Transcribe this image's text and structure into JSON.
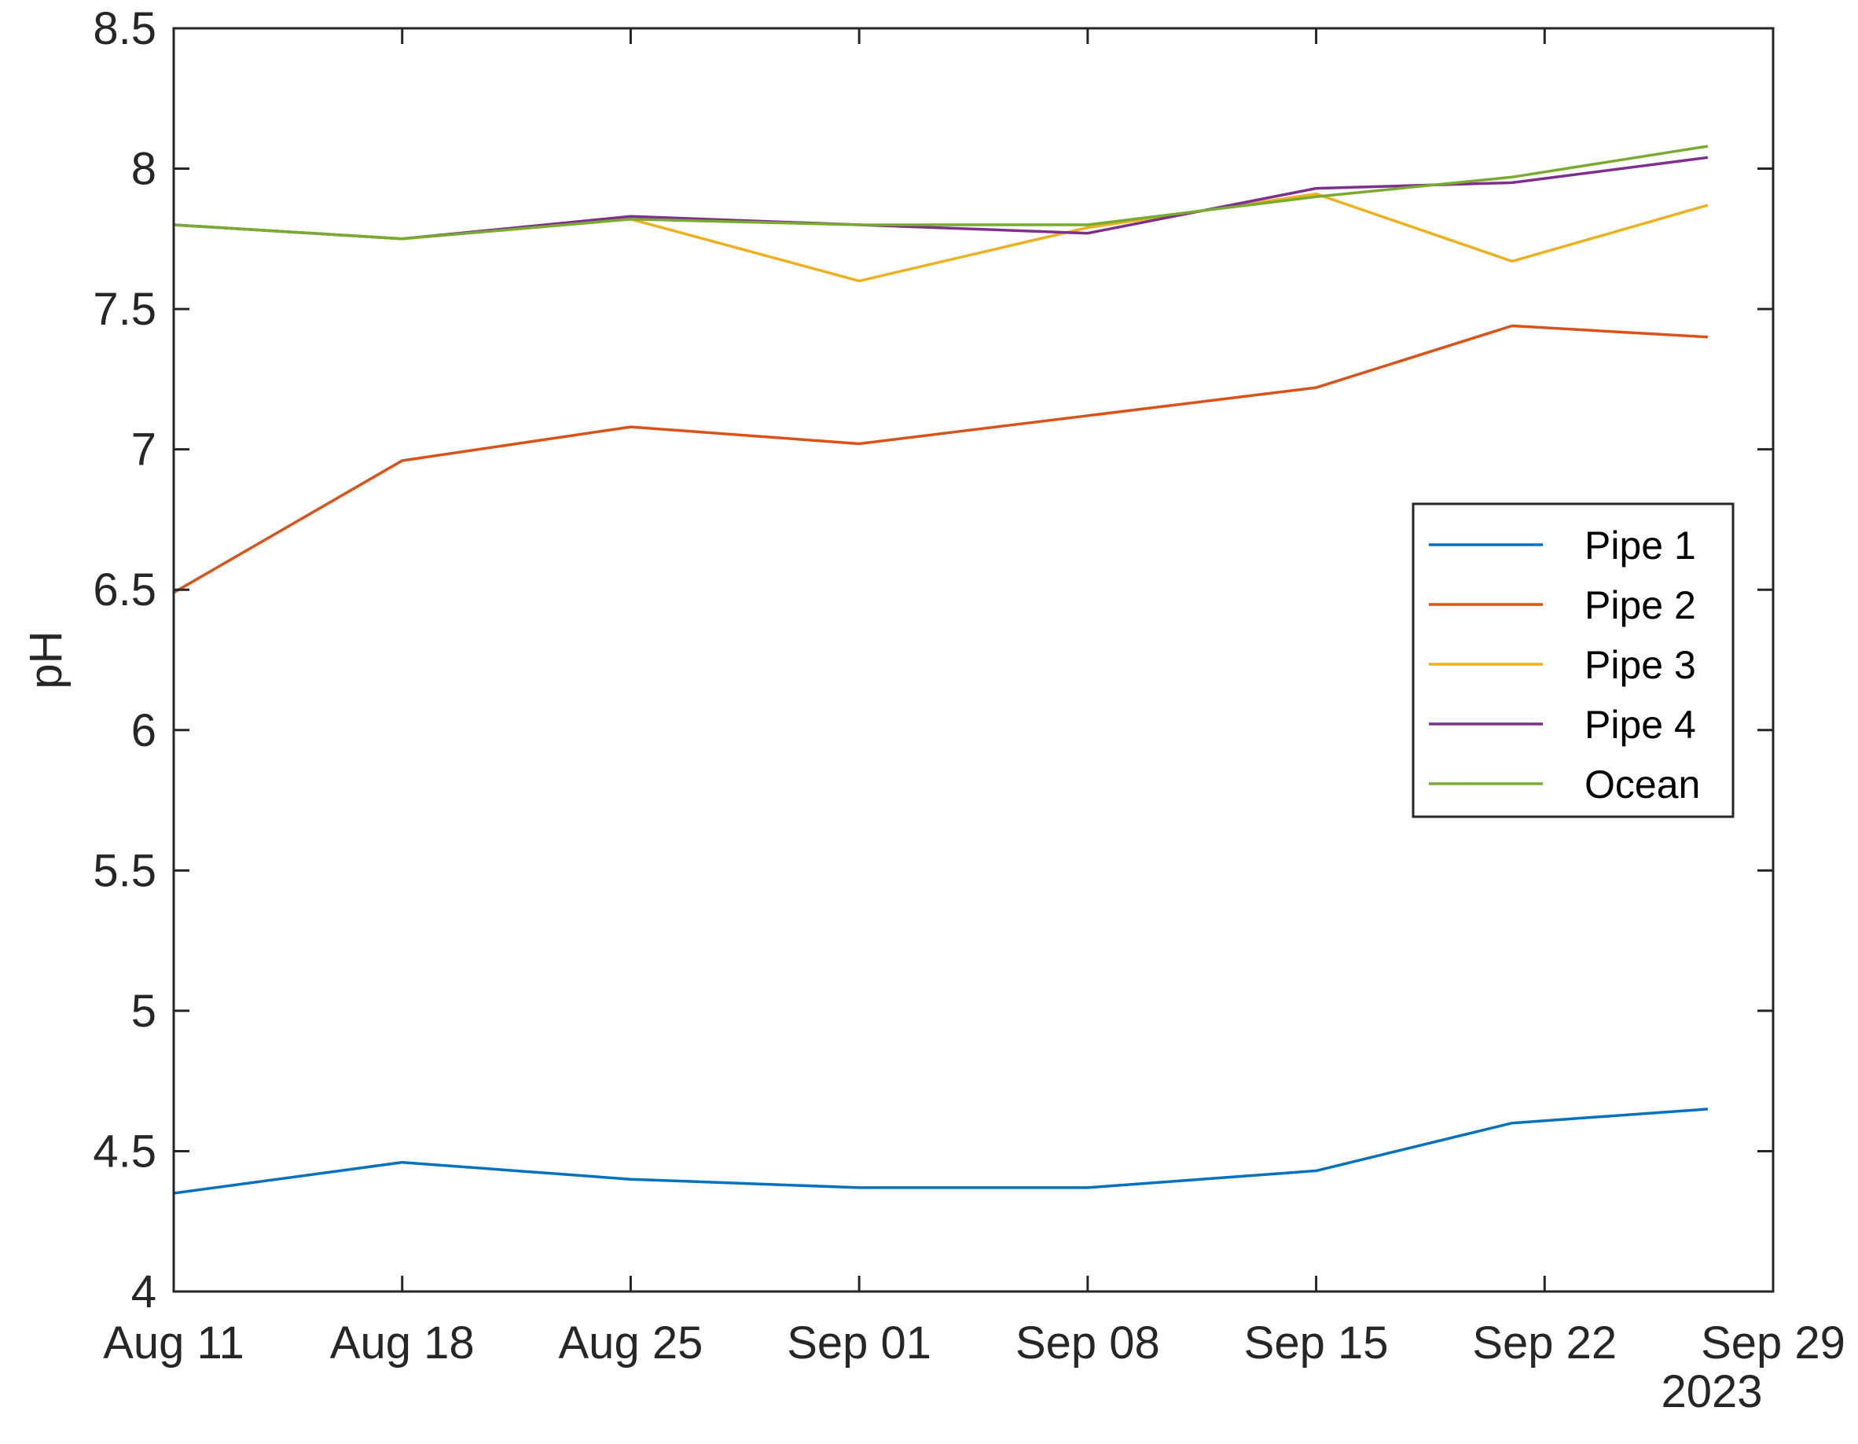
{
  "chart_data": {
    "type": "line",
    "title": "",
    "xlabel": "",
    "ylabel": "pH",
    "x_year_label": "2023",
    "x_tick_labels": [
      "Aug 11",
      "Aug 18",
      "Aug 25",
      "Sep 01",
      "Sep 08",
      "Sep 15",
      "Sep 22",
      "Sep 29"
    ],
    "x_tick_dates": [
      "2023-08-11",
      "2023-08-18",
      "2023-08-25",
      "2023-09-01",
      "2023-09-08",
      "2023-09-15",
      "2023-09-22",
      "2023-09-29"
    ],
    "xlim": [
      "2023-08-11",
      "2023-09-29"
    ],
    "ylim": [
      4,
      8.5
    ],
    "y_tick_labels": [
      "4",
      "4.5",
      "5",
      "5.5",
      "6",
      "6.5",
      "7",
      "7.5",
      "8",
      "8.5"
    ],
    "y_ticks": [
      4,
      4.5,
      5,
      5.5,
      6,
      6.5,
      7,
      7.5,
      8,
      8.5
    ],
    "x": [
      "2023-08-11",
      "2023-08-18",
      "2023-08-25",
      "2023-09-01",
      "2023-09-08",
      "2023-09-15",
      "2023-09-21",
      "2023-09-27"
    ],
    "grid": false,
    "legend_position": "right",
    "series": [
      {
        "name": "Pipe 1",
        "color": "#0072BD",
        "values": [
          4.35,
          4.46,
          4.4,
          4.37,
          4.37,
          4.43,
          4.6,
          4.65
        ]
      },
      {
        "name": "Pipe 2",
        "color": "#D95319",
        "values": [
          6.49,
          6.96,
          7.08,
          7.02,
          7.12,
          7.22,
          7.44,
          7.4
        ]
      },
      {
        "name": "Pipe 3",
        "color": "#EDB120",
        "values": [
          7.8,
          7.75,
          7.82,
          7.6,
          7.79,
          7.91,
          7.67,
          7.87
        ]
      },
      {
        "name": "Pipe 4",
        "color": "#7E2F8E",
        "values": [
          7.8,
          7.75,
          7.83,
          7.8,
          7.77,
          7.93,
          7.95,
          8.04
        ]
      },
      {
        "name": "Ocean",
        "color": "#77AC30",
        "values": [
          7.8,
          7.75,
          7.82,
          7.8,
          7.8,
          7.9,
          7.97,
          8.08
        ]
      }
    ]
  }
}
